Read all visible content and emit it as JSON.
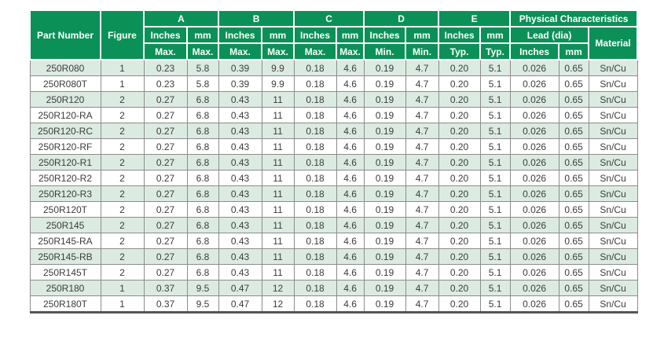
{
  "table": {
    "header": {
      "part_number": "Part Number",
      "figure": "Figure",
      "groups": {
        "a": "A",
        "b": "B",
        "c": "C",
        "d": "D",
        "e": "E",
        "physical": "Physical Characteristics"
      },
      "units": {
        "inches": "Inches",
        "mm": "mm"
      },
      "qualifiers": {
        "max": "Max.",
        "min": "Min.",
        "typ": "Typ."
      },
      "lead_dia": "Lead (dia)",
      "material": "Material"
    },
    "rows": [
      [
        "250R080",
        "1",
        "0.23",
        "5.8",
        "0.39",
        "9.9",
        "0.18",
        "4.6",
        "0.19",
        "4.7",
        "0.20",
        "5.1",
        "0.026",
        "0.65",
        "Sn/Cu"
      ],
      [
        "250R080T",
        "1",
        "0.23",
        "5.8",
        "0.39",
        "9.9",
        "0.18",
        "4.6",
        "0.19",
        "4.7",
        "0.20",
        "5.1",
        "0.026",
        "0.65",
        "Sn/Cu"
      ],
      [
        "250R120",
        "2",
        "0.27",
        "6.8",
        "0.43",
        "11",
        "0.18",
        "4.6",
        "0.19",
        "4.7",
        "0.20",
        "5.1",
        "0.026",
        "0.65",
        "Sn/Cu"
      ],
      [
        "250R120-RA",
        "2",
        "0.27",
        "6.8",
        "0.43",
        "11",
        "0.18",
        "4.6",
        "0.19",
        "4.7",
        "0.20",
        "5.1",
        "0.026",
        "0.65",
        "Sn/Cu"
      ],
      [
        "250R120-RC",
        "2",
        "0.27",
        "6.8",
        "0.43",
        "11",
        "0.18",
        "4.6",
        "0.19",
        "4.7",
        "0.20",
        "5.1",
        "0.026",
        "0.65",
        "Sn/Cu"
      ],
      [
        "250R120-RF",
        "2",
        "0.27",
        "6.8",
        "0.43",
        "11",
        "0.18",
        "4.6",
        "0.19",
        "4.7",
        "0.20",
        "5.1",
        "0.026",
        "0.65",
        "Sn/Cu"
      ],
      [
        "250R120-R1",
        "2",
        "0.27",
        "6.8",
        "0.43",
        "11",
        "0.18",
        "4.6",
        "0.19",
        "4.7",
        "0.20",
        "5.1",
        "0.026",
        "0.65",
        "Sn/Cu"
      ],
      [
        "250R120-R2",
        "2",
        "0.27",
        "6.8",
        "0.43",
        "11",
        "0.18",
        "4.6",
        "0.19",
        "4.7",
        "0.20",
        "5.1",
        "0.026",
        "0.65",
        "Sn/Cu"
      ],
      [
        "250R120-R3",
        "2",
        "0.27",
        "6.8",
        "0.43",
        "11",
        "0.18",
        "4.6",
        "0.19",
        "4.7",
        "0.20",
        "5.1",
        "0.026",
        "0.65",
        "Sn/Cu"
      ],
      [
        "250R120T",
        "2",
        "0.27",
        "6.8",
        "0.43",
        "11",
        "0.18",
        "4.6",
        "0.19",
        "4.7",
        "0.20",
        "5.1",
        "0.026",
        "0.65",
        "Sn/Cu"
      ],
      [
        "250R145",
        "2",
        "0.27",
        "6.8",
        "0.43",
        "11",
        "0.18",
        "4.6",
        "0.19",
        "4.7",
        "0.20",
        "5.1",
        "0.026",
        "0.65",
        "Sn/Cu"
      ],
      [
        "250R145-RA",
        "2",
        "0.27",
        "6.8",
        "0.43",
        "11",
        "0.18",
        "4.6",
        "0.19",
        "4.7",
        "0.20",
        "5.1",
        "0.026",
        "0.65",
        "Sn/Cu"
      ],
      [
        "250R145-RB",
        "2",
        "0.27",
        "6.8",
        "0.43",
        "11",
        "0.18",
        "4.6",
        "0.19",
        "4.7",
        "0.20",
        "5.1",
        "0.026",
        "0.65",
        "Sn/Cu"
      ],
      [
        "250R145T",
        "2",
        "0.27",
        "6.8",
        "0.43",
        "11",
        "0.18",
        "4.6",
        "0.19",
        "4.7",
        "0.20",
        "5.1",
        "0.026",
        "0.65",
        "Sn/Cu"
      ],
      [
        "250R180",
        "1",
        "0.37",
        "9.5",
        "0.47",
        "12",
        "0.18",
        "4.6",
        "0.19",
        "4.7",
        "0.20",
        "5.1",
        "0.026",
        "0.65",
        "Sn/Cu"
      ],
      [
        "250R180T",
        "1",
        "0.37",
        "9.5",
        "0.47",
        "12",
        "0.18",
        "4.6",
        "0.19",
        "4.7",
        "0.20",
        "5.1",
        "0.026",
        "0.65",
        "Sn/Cu"
      ]
    ]
  },
  "colors": {
    "header_bg": "#0b9157",
    "header_text": "#ffffff",
    "row_alt_bg": "#dcebe2",
    "row_bg": "#ffffff",
    "grid_border": "#8c8c8c",
    "bottom_border": "#555555",
    "body_text": "#3c3c3c"
  }
}
